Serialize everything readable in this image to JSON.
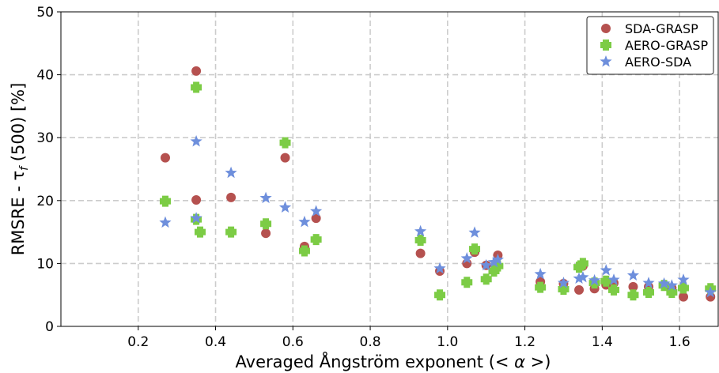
{
  "chart_data": {
    "type": "scatter",
    "xlabel": "Averaged Ångström exponent (",
    "xlabel_symbol": "< α >",
    "xlabel_close": ")",
    "ylabel": "RMSRE - τ",
    "ylabel_sub": "f",
    "ylabel_rest": " (500) [%]",
    "xlim": [
      0.0,
      1.7
    ],
    "ylim": [
      0,
      50
    ],
    "xticks": [
      0.2,
      0.4,
      0.6,
      0.8,
      1.0,
      1.2,
      1.4,
      1.6
    ],
    "xtick_labels": [
      "0.2",
      "0.4",
      "0.6",
      "0.8",
      "1.0",
      "1.2",
      "1.4",
      "1.6"
    ],
    "yticks": [
      0,
      10,
      20,
      30,
      40,
      50
    ],
    "ytick_labels": [
      "0",
      "10",
      "20",
      "30",
      "40",
      "50"
    ],
    "grid": true,
    "legend_position": "top-right",
    "series": [
      {
        "name": "SDA-GRASP",
        "marker": "circle",
        "color": "#b5514f",
        "points": [
          [
            0.27,
            26.8
          ],
          [
            0.35,
            40.6
          ],
          [
            0.35,
            20.1
          ],
          [
            0.44,
            20.5
          ],
          [
            0.53,
            14.8
          ],
          [
            0.58,
            26.8
          ],
          [
            0.63,
            12.7
          ],
          [
            0.66,
            17.2
          ],
          [
            0.93,
            11.6
          ],
          [
            0.98,
            8.8
          ],
          [
            1.05,
            10.0
          ],
          [
            1.07,
            11.8
          ],
          [
            1.1,
            9.7
          ],
          [
            1.13,
            11.3
          ],
          [
            1.24,
            7.1
          ],
          [
            1.3,
            6.8
          ],
          [
            1.34,
            5.8
          ],
          [
            1.35,
            9.6
          ],
          [
            1.38,
            6.0
          ],
          [
            1.41,
            6.6
          ],
          [
            1.43,
            6.9
          ],
          [
            1.48,
            6.3
          ],
          [
            1.52,
            6.3
          ],
          [
            1.56,
            6.6
          ],
          [
            1.58,
            6.1
          ],
          [
            1.61,
            4.7
          ],
          [
            1.68,
            4.7
          ]
        ]
      },
      {
        "name": "AERO-GRASP",
        "marker": "plus",
        "color": "#7ccc45",
        "points": [
          [
            0.27,
            19.9
          ],
          [
            0.35,
            38.0
          ],
          [
            0.35,
            17.0
          ],
          [
            0.36,
            15.0
          ],
          [
            0.44,
            15.0
          ],
          [
            0.53,
            16.3
          ],
          [
            0.58,
            29.2
          ],
          [
            0.63,
            12.0
          ],
          [
            0.66,
            13.8
          ],
          [
            0.93,
            13.7
          ],
          [
            0.98,
            5.0
          ],
          [
            1.05,
            7.0
          ],
          [
            1.07,
            12.3
          ],
          [
            1.1,
            7.5
          ],
          [
            1.12,
            8.8
          ],
          [
            1.13,
            9.6
          ],
          [
            1.24,
            6.2
          ],
          [
            1.3,
            5.9
          ],
          [
            1.34,
            9.4
          ],
          [
            1.35,
            10.0
          ],
          [
            1.38,
            6.9
          ],
          [
            1.41,
            7.2
          ],
          [
            1.43,
            5.8
          ],
          [
            1.48,
            5.0
          ],
          [
            1.52,
            5.4
          ],
          [
            1.56,
            6.5
          ],
          [
            1.58,
            5.4
          ],
          [
            1.61,
            6.1
          ],
          [
            1.68,
            6.0
          ]
        ]
      },
      {
        "name": "AERO-SDA",
        "marker": "star",
        "color": "#6e8fdc",
        "points": [
          [
            0.27,
            16.5
          ],
          [
            0.35,
            29.4
          ],
          [
            0.35,
            17.2
          ],
          [
            0.44,
            24.4
          ],
          [
            0.53,
            20.4
          ],
          [
            0.58,
            18.9
          ],
          [
            0.63,
            16.6
          ],
          [
            0.66,
            18.3
          ],
          [
            0.93,
            15.1
          ],
          [
            0.98,
            9.2
          ],
          [
            1.05,
            10.8
          ],
          [
            1.07,
            14.9
          ],
          [
            1.1,
            9.7
          ],
          [
            1.12,
            10.2
          ],
          [
            1.13,
            10.6
          ],
          [
            1.24,
            8.3
          ],
          [
            1.3,
            6.9
          ],
          [
            1.34,
            7.6
          ],
          [
            1.35,
            7.8
          ],
          [
            1.38,
            7.3
          ],
          [
            1.41,
            8.9
          ],
          [
            1.43,
            7.4
          ],
          [
            1.48,
            8.1
          ],
          [
            1.52,
            6.9
          ],
          [
            1.56,
            6.8
          ],
          [
            1.58,
            6.5
          ],
          [
            1.61,
            7.4
          ],
          [
            1.68,
            5.4
          ]
        ]
      }
    ]
  }
}
